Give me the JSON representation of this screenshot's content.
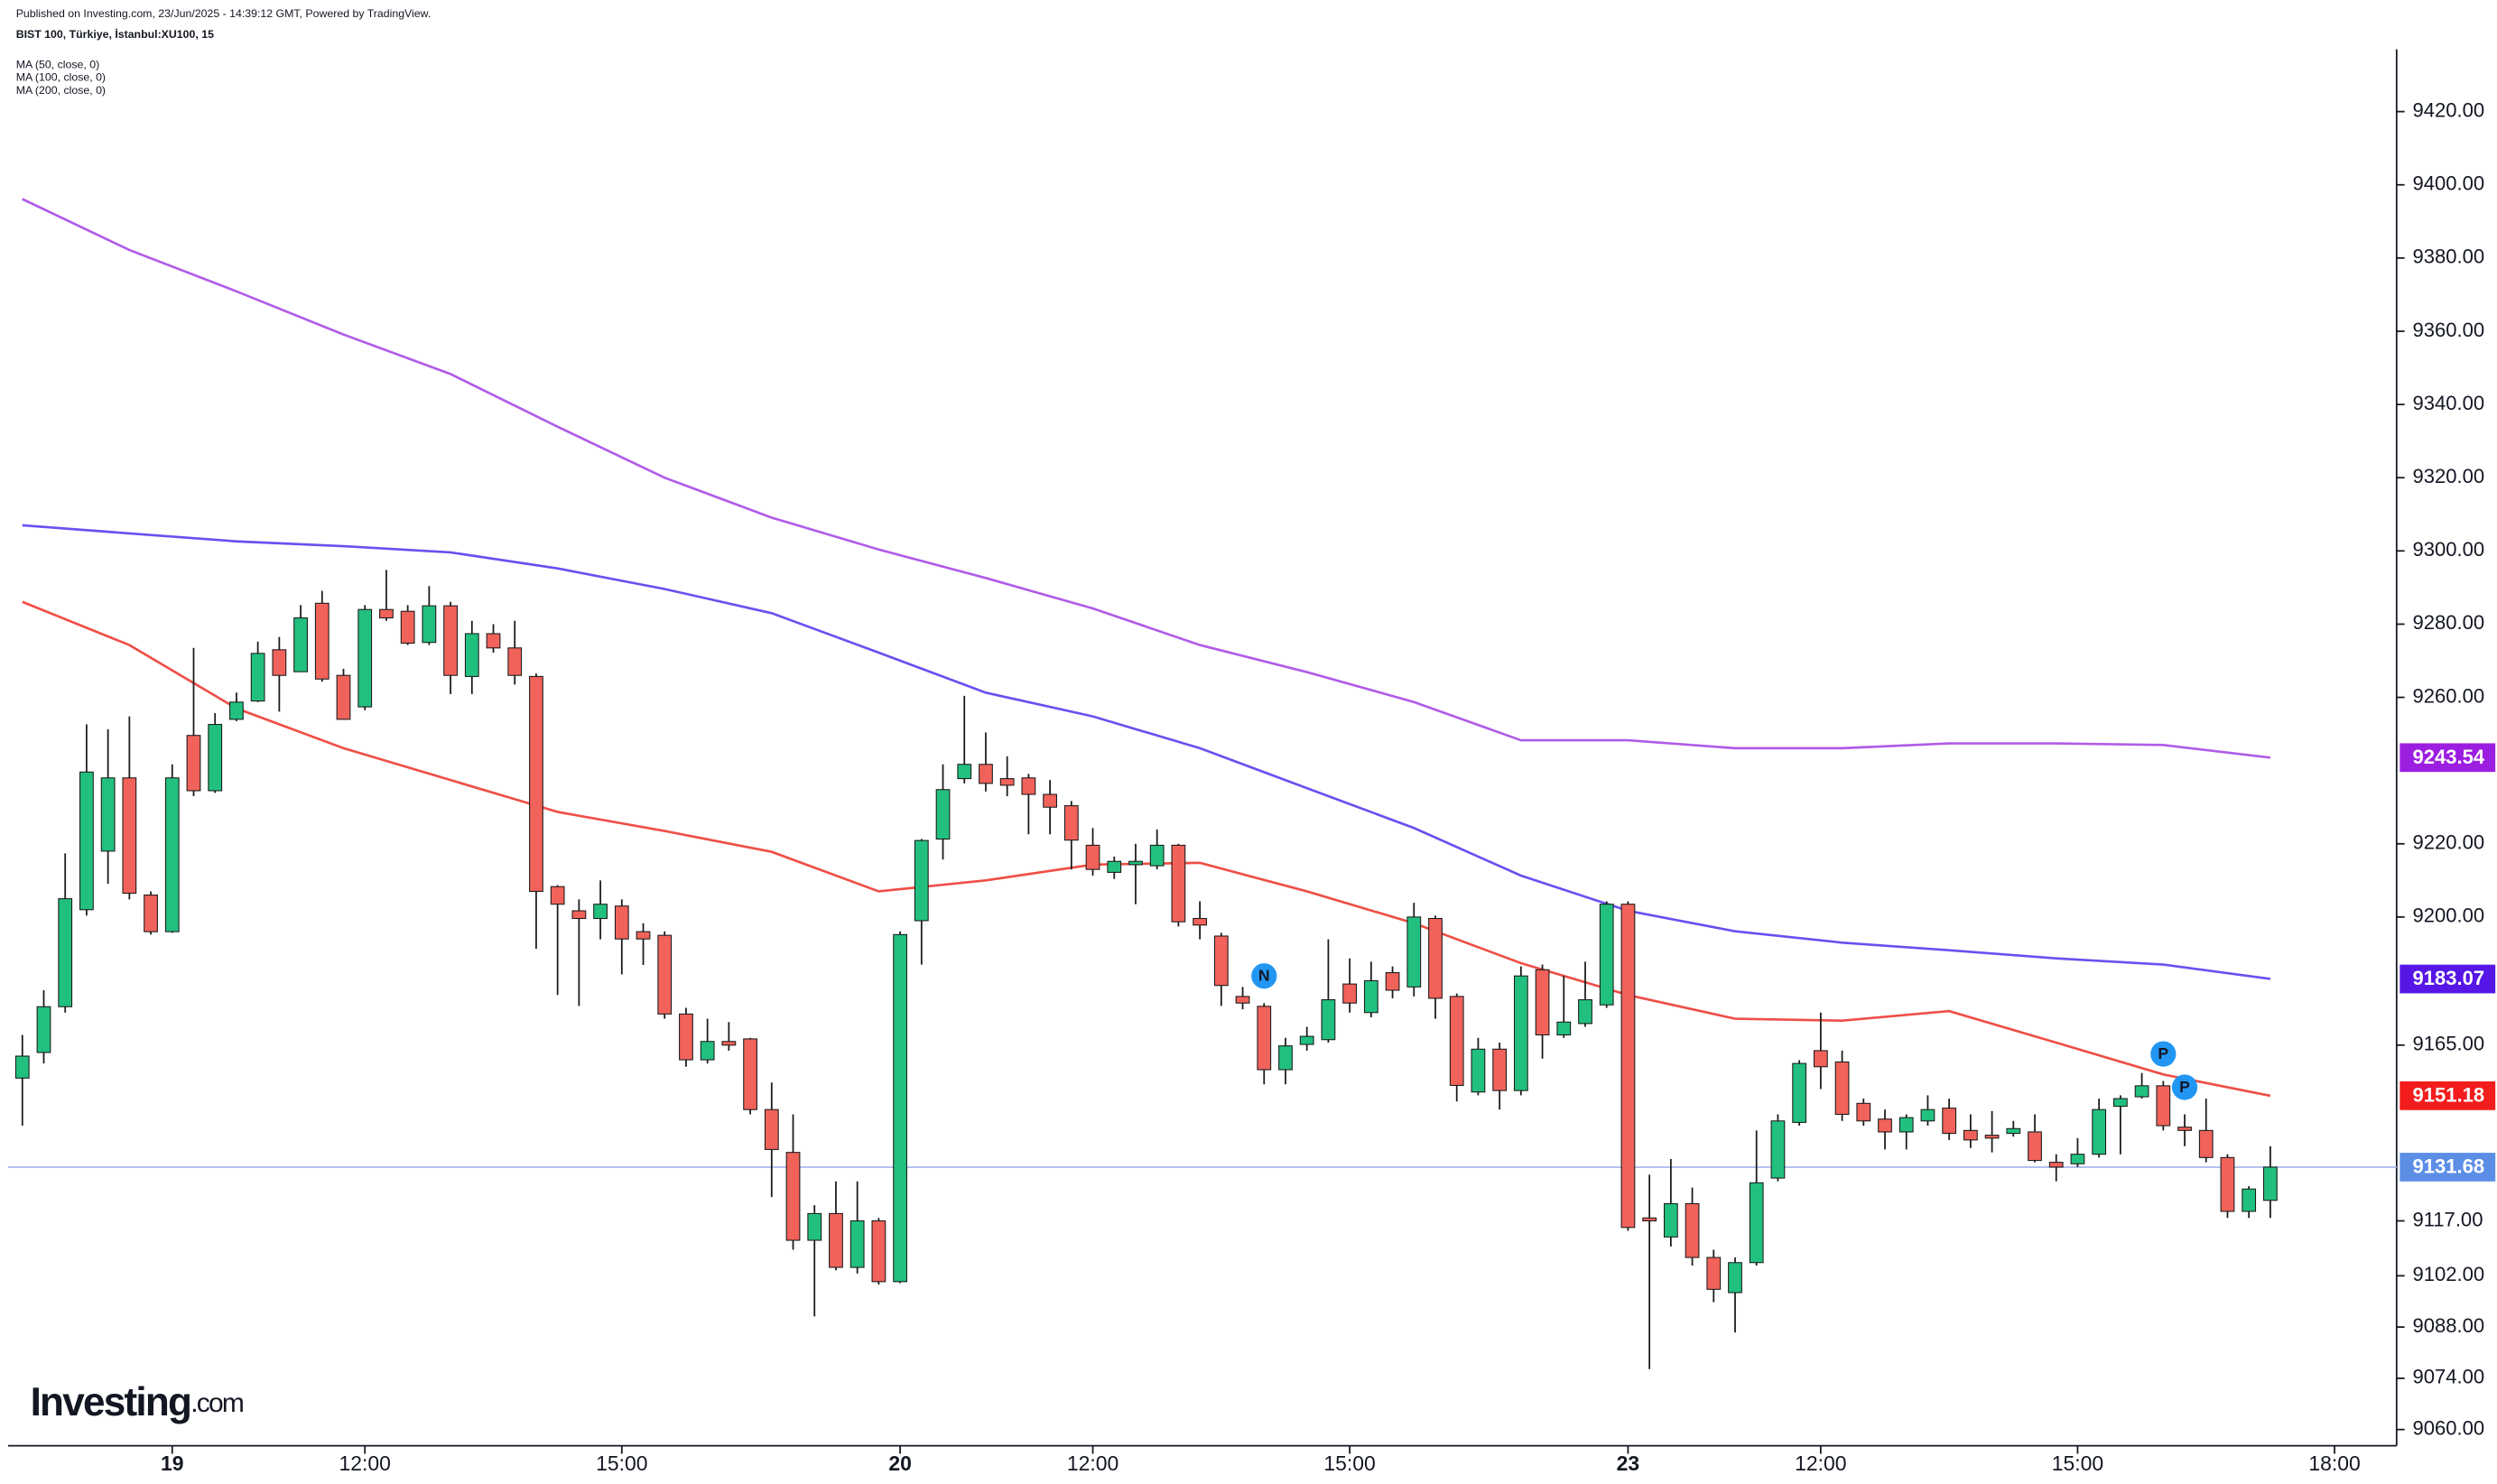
{
  "chart_data": {
    "type": "candlestick",
    "source": "Published on Investing.com, 23/Jun/2025 - 14:39:12 GMT, Powered by TradingView.",
    "title": "BIST 100, Türkiye, İstanbul:XU100, 15",
    "logo": {
      "name": "Investing",
      "suffix": ".com"
    },
    "events": [
      {
        "text": "N"
      },
      {
        "text": "P"
      },
      {
        "text": "P"
      }
    ],
    "up_color": "#22c07e",
    "down_color": "#f0625a",
    "open": [
      9156,
      9163,
      9175.5,
      9202,
      9218,
      9238,
      9206,
      9196,
      9249.6,
      9234.5,
      9254,
      9259,
      9273,
      9267,
      9285.7,
      9266,
      9257.4,
      9284,
      9283.5,
      9275,
      9285,
      9265.7,
      9277.4,
      9273.5,
      9265.7,
      9208.3,
      9201.7,
      9199.6,
      9203,
      9196,
      9195,
      9173.5,
      9161,
      9166,
      9166.7,
      9147.4,
      9135.7,
      9111.7,
      9119,
      9104.3,
      9117,
      9100.4,
      9199,
      9221.3,
      9237.8,
      9241.7,
      9237.8,
      9238,
      9233.5,
      9230.4,
      9219.6,
      9212.2,
      9214.3,
      9214,
      9219.6,
      9199.6,
      9194.8,
      9178.3,
      9175.6,
      9158.3,
      9165.2,
      9166.5,
      9181.7,
      9173.9,
      9184.8,
      9180.9,
      9199.6,
      9178.3,
      9152.2,
      9163.9,
      9152.6,
      9185.6,
      9167.8,
      9170.9,
      9176,
      9203.5,
      9117.8,
      9112.6,
      9121.7,
      9107,
      9097.4,
      9105.6,
      9128.7,
      9143.9,
      9163.5,
      9160.4,
      9149.1,
      9144.8,
      9141.3,
      9144.3,
      9147.8,
      9141.7,
      9140.4,
      9140.9,
      9141.3,
      9133,
      9132.6,
      9135.2,
      9148.3,
      9150.9,
      9153.9,
      9142.6,
      9141.7,
      9134.3,
      9119.6,
      9122.6
    ],
    "high": [
      9167.8,
      9180,
      9217.4,
      9252.6,
      9251.3,
      9254.8,
      9207,
      9241.7,
      9273.5,
      9255.7,
      9261.3,
      9275.2,
      9276.5,
      9285.2,
      9289.1,
      9267.8,
      9285.2,
      9294.8,
      9285.2,
      9290.4,
      9286.1,
      9280.9,
      9280,
      9280.9,
      9266.5,
      9208.7,
      9204.8,
      9210,
      9204.8,
      9198.3,
      9196.1,
      9175.2,
      9172.2,
      9171.3,
      9167,
      9154.8,
      9146.1,
      9121.3,
      9127.8,
      9127.8,
      9117.8,
      9196.1,
      9221.3,
      9241.7,
      9260.4,
      9250.4,
      9243.9,
      9239.1,
      9237.4,
      9231.7,
      9224.3,
      9216.5,
      9220,
      9223.9,
      9220,
      9204.3,
      9195.7,
      9180.9,
      9176.5,
      9167,
      9170,
      9193.9,
      9188.7,
      9187.8,
      9186.5,
      9203.9,
      9200.4,
      9179.1,
      9167,
      9165.7,
      9186.5,
      9187,
      9183.9,
      9187.8,
      9204.3,
      9204.3,
      9129.6,
      9133.9,
      9126.1,
      9109.1,
      9107,
      9141.7,
      9146.1,
      9160.9,
      9173.9,
      9163.5,
      9150.4,
      9147.4,
      9146.1,
      9151.3,
      9150.4,
      9146.1,
      9147,
      9144.3,
      9146.1,
      9135.2,
      9139.6,
      9150.4,
      9151.3,
      9157.4,
      9155.2,
      9146.1,
      9150.4,
      9135.2,
      9126.5,
      9137.4
    ],
    "low": [
      9143,
      9160,
      9173.9,
      9200.4,
      9209.1,
      9204.8,
      9195.2,
      9195.7,
      9233,
      9233.9,
      9253.5,
      9258.7,
      9256.1,
      9267,
      9264.3,
      9253.9,
      9256.5,
      9280.9,
      9274.3,
      9274.3,
      9260.9,
      9260.9,
      9272.2,
      9263.5,
      9191.3,
      9178.7,
      9175.7,
      9193.9,
      9184.3,
      9186.9,
      9172.2,
      9159.1,
      9160,
      9163.5,
      9146.1,
      9123.5,
      9109.1,
      9090.9,
      9103.5,
      9102.6,
      9099.6,
      9100,
      9187,
      9215.7,
      9236.5,
      9234.3,
      9233,
      9222.6,
      9222.6,
      9213,
      9211.3,
      9210.4,
      9203.5,
      9213,
      9197.4,
      9193.9,
      9175.7,
      9174.8,
      9154.3,
      9154.3,
      9163.5,
      9165.7,
      9173.9,
      9172.6,
      9177.8,
      9178.3,
      9172.2,
      9149.6,
      9151.3,
      9147.4,
      9151.3,
      9161.3,
      9167,
      9170,
      9175.2,
      9114.3,
      9076.5,
      9110,
      9104.8,
      9094.8,
      9086.5,
      9104.8,
      9127.8,
      9143,
      9153,
      9144.3,
      9143,
      9136.5,
      9136.5,
      9143,
      9139.1,
      9136.9,
      9135.7,
      9140,
      9133,
      9127.8,
      9131.7,
      9134.3,
      9135.2,
      9150.4,
      9141.7,
      9137.4,
      9133,
      9117.8,
      9117.8,
      9117.8
    ],
    "close": [
      9162,
      9175.5,
      9205,
      9239.6,
      9238,
      9206.5,
      9196,
      9238,
      9234.5,
      9252.6,
      9258.7,
      9272,
      9266,
      9281.7,
      9265,
      9254,
      9284,
      9281.7,
      9274.8,
      9285,
      9266,
      9277.4,
      9273.5,
      9266,
      9207,
      9203.5,
      9199.6,
      9203.5,
      9194,
      9194,
      9173.5,
      9161,
      9166,
      9165,
      9147.4,
      9136.5,
      9111.7,
      9119,
      9104.3,
      9117,
      9100.4,
      9195.2,
      9220.9,
      9234.8,
      9241.7,
      9236.5,
      9236,
      9233.5,
      9230,
      9221,
      9213,
      9215.2,
      9215.2,
      9219.6,
      9198.7,
      9197.8,
      9181.3,
      9176.5,
      9158.3,
      9164.8,
      9167.4,
      9177.4,
      9176.5,
      9182.6,
      9180,
      9200,
      9177.8,
      9154,
      9163.9,
      9152.6,
      9183.9,
      9167.8,
      9171.3,
      9177.4,
      9203.5,
      9115.2,
      9117,
      9121.7,
      9107,
      9098.3,
      9105.6,
      9127.4,
      9144.3,
      9160,
      9159.1,
      9146.1,
      9144.3,
      9141.3,
      9145.2,
      9147.4,
      9140.9,
      9139.1,
      9139.6,
      9142.2,
      9133.5,
      9131.7,
      9135.2,
      9147.4,
      9150.4,
      9153.9,
      9143,
      9141.7,
      9134.3,
      9119.6,
      9125.7,
      9131.68
    ],
    "last_price": {
      "value": 9131.68,
      "label": "9131.68",
      "color": "#5c8ee6"
    },
    "ma_x": [
      0,
      5,
      10,
      15,
      20,
      25,
      30,
      35,
      40,
      45,
      50,
      55,
      60,
      65,
      70,
      75,
      80,
      85,
      90,
      95,
      100,
      105
    ],
    "series": [
      {
        "name": "MA (50, close, 0)",
        "color": "#ef4f47",
        "values": [
          9286.1,
          9274.3,
          9257,
          9246.1,
          9237.4,
          9228.7,
          9223.5,
          9217.8,
          9207,
          9210,
          9214.3,
          9214.8,
          9207,
          9198.3,
          9187.4,
          9178.7,
          9172.2,
          9171.7,
          9174.3,
          9165.7,
          9157,
          9151.18
        ],
        "price_label": {
          "value": 9151.18,
          "label": "9151.18",
          "color": "#f21c1c"
        }
      },
      {
        "name": "MA (100, close, 0)",
        "color": "#6a50f0",
        "values": [
          9307,
          9304.8,
          9302.6,
          9301.3,
          9299.6,
          9295.2,
          9289.6,
          9283,
          9272.2,
          9261.3,
          9254.8,
          9246.1,
          9235.2,
          9224.3,
          9211.3,
          9201.7,
          9196.1,
          9193,
          9190.9,
          9188.7,
          9187,
          9183.07
        ],
        "price_label": {
          "value": 9183.07,
          "label": "9183.07",
          "color": "#5516e6"
        }
      },
      {
        "name": "MA (200, close, 0)",
        "color": "#b05ce8",
        "values": [
          9396.1,
          9382.2,
          9370.9,
          9359.1,
          9348.3,
          9333.9,
          9320,
          9309.1,
          9300.4,
          9292.6,
          9284.3,
          9274.3,
          9266.9,
          9258.7,
          9248.3,
          9248.3,
          9246.1,
          9246.1,
          9247.4,
          9247.4,
          9247,
          9243.54
        ],
        "price_label": {
          "value": 9243.54,
          "label": "9243.54",
          "color": "#9c1ee0"
        }
      }
    ],
    "xlim": [
      -0.67,
      110.9
    ],
    "xticks": [
      {
        "value": 7,
        "label": "19"
      },
      {
        "value": 16,
        "label": "12:00"
      },
      {
        "value": 28,
        "label": "15:00"
      },
      {
        "value": 41,
        "label": "20"
      },
      {
        "value": 50,
        "label": "12:00"
      },
      {
        "value": 62,
        "label": "15:00"
      },
      {
        "value": 75,
        "label": "23"
      },
      {
        "value": 84,
        "label": "12:00"
      },
      {
        "value": 96,
        "label": "15:00"
      },
      {
        "value": 108,
        "label": "18:00"
      }
    ],
    "ylim": [
      9056,
      9437
    ],
    "yticks": [
      {
        "value": 9060,
        "label": "9060.00"
      },
      {
        "value": 9074,
        "label": "9074.00"
      },
      {
        "value": 9088,
        "label": "9088.00"
      },
      {
        "value": 9102,
        "label": "9102.00"
      },
      {
        "value": 9117,
        "label": "9117.00"
      },
      {
        "value": 9165,
        "label": "9165.00"
      },
      {
        "value": 9200,
        "label": "9200.00"
      },
      {
        "value": 9220,
        "label": "9220.00"
      },
      {
        "value": 9260,
        "label": "9260.00"
      },
      {
        "value": 9280,
        "label": "9280.00"
      },
      {
        "value": 9300,
        "label": "9300.00"
      },
      {
        "value": 9320,
        "label": "9320.00"
      },
      {
        "value": 9340,
        "label": "9340.00"
      },
      {
        "value": 9360,
        "label": "9360.00"
      },
      {
        "value": 9380,
        "label": "9380.00"
      },
      {
        "value": 9400,
        "label": "9400.00"
      },
      {
        "value": 9420,
        "label": "9420.00"
      }
    ]
  }
}
